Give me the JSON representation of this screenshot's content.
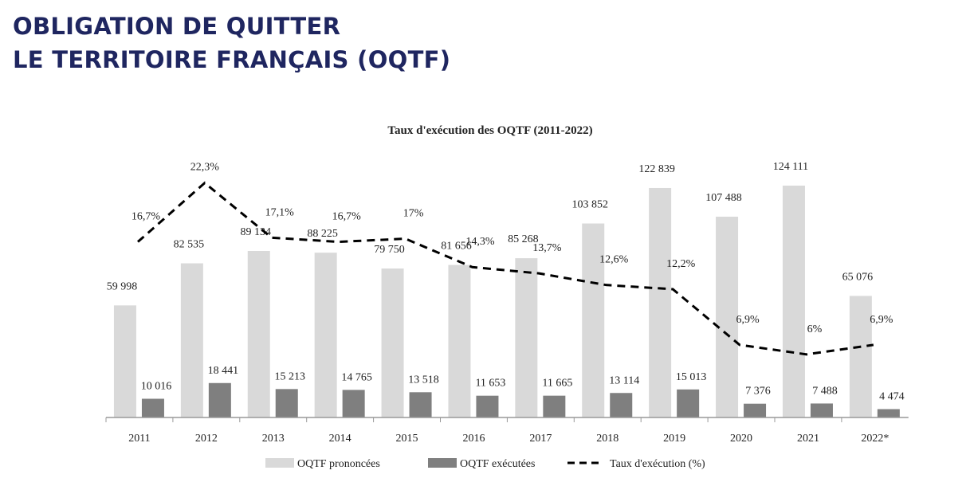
{
  "header": {
    "line1": "OBLIGATION DE QUITTER",
    "line2": "LE TERRITOIRE FRANÇAIS (OQTF)"
  },
  "chart_data": {
    "type": "bar+line",
    "title": "Taux d'exécution des OQTF (2011-2022)",
    "categories": [
      "2011",
      "2012",
      "2013",
      "2014",
      "2015",
      "2016",
      "2017",
      "2018",
      "2019",
      "2020",
      "2021",
      "2022*"
    ],
    "series": [
      {
        "name": "OQTF prononcées",
        "type": "bar",
        "color": "#d9d9d9",
        "values": [
          59998,
          82535,
          89134,
          88225,
          79750,
          81656,
          85268,
          103852,
          122839,
          107488,
          124111,
          65076
        ],
        "labels": [
          "59 998",
          "82 535",
          "89 134",
          "88 225",
          "79 750",
          "81 656",
          "85 268",
          "103 852",
          "122 839",
          "107 488",
          "124 111",
          "65 076"
        ]
      },
      {
        "name": "OQTF exécutées",
        "type": "bar",
        "color": "#7f7f7f",
        "values": [
          10016,
          18441,
          15213,
          14765,
          13518,
          11653,
          11665,
          13114,
          15013,
          7376,
          7488,
          4474
        ],
        "labels": [
          "10 016",
          "18 441",
          "15 213",
          "14 765",
          "13 518",
          "11 653",
          "11 665",
          "13 114",
          "15 013",
          "7 376",
          "7 488",
          "4 474"
        ]
      },
      {
        "name": "Taux d'exécution (%)",
        "type": "line",
        "style": "dashed",
        "color": "#000000",
        "values": [
          16.7,
          22.3,
          17.1,
          16.7,
          17,
          14.3,
          13.7,
          12.6,
          12.2,
          6.9,
          6,
          6.9
        ],
        "labels": [
          "16,7%",
          "22,3%",
          "17,1%",
          "16,7%",
          "17%",
          "14,3%",
          "13,7%",
          "12,6%",
          "12,2%",
          "6,9%",
          "6%",
          "6,9%"
        ]
      }
    ],
    "legend": "bottom"
  }
}
